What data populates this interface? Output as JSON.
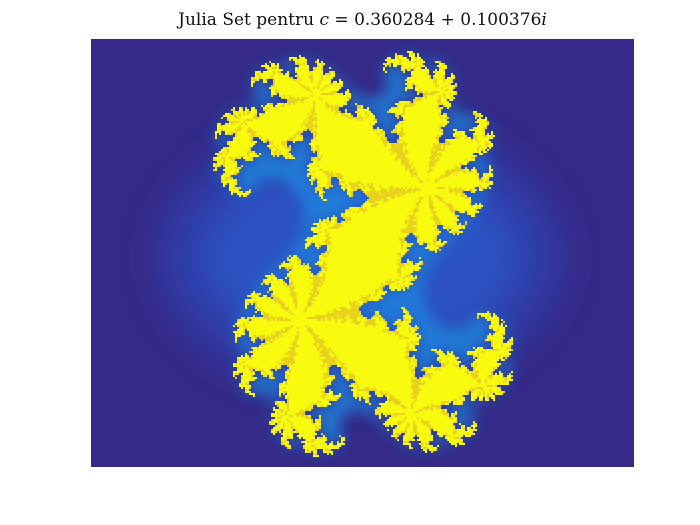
{
  "figure": {
    "title_prefix": "Julia Set pentru ",
    "c_symbol": "c",
    "equals": " = ",
    "real_part": "0.360284",
    "plus": " + ",
    "imag_part": "0.100376",
    "imag_unit": "i"
  },
  "colors": {
    "background_outside": "#352a87",
    "halo_outer": "#3338a0",
    "halo_mid": "#2f48b8",
    "halo_inner": "#2a5fd0",
    "glow": "#1e88e0",
    "fractal_core": "#f9fb0e",
    "fractal_edge": "#e8d21c"
  },
  "fractal": {
    "name": "julia-set",
    "colormap": "parula"
  }
}
